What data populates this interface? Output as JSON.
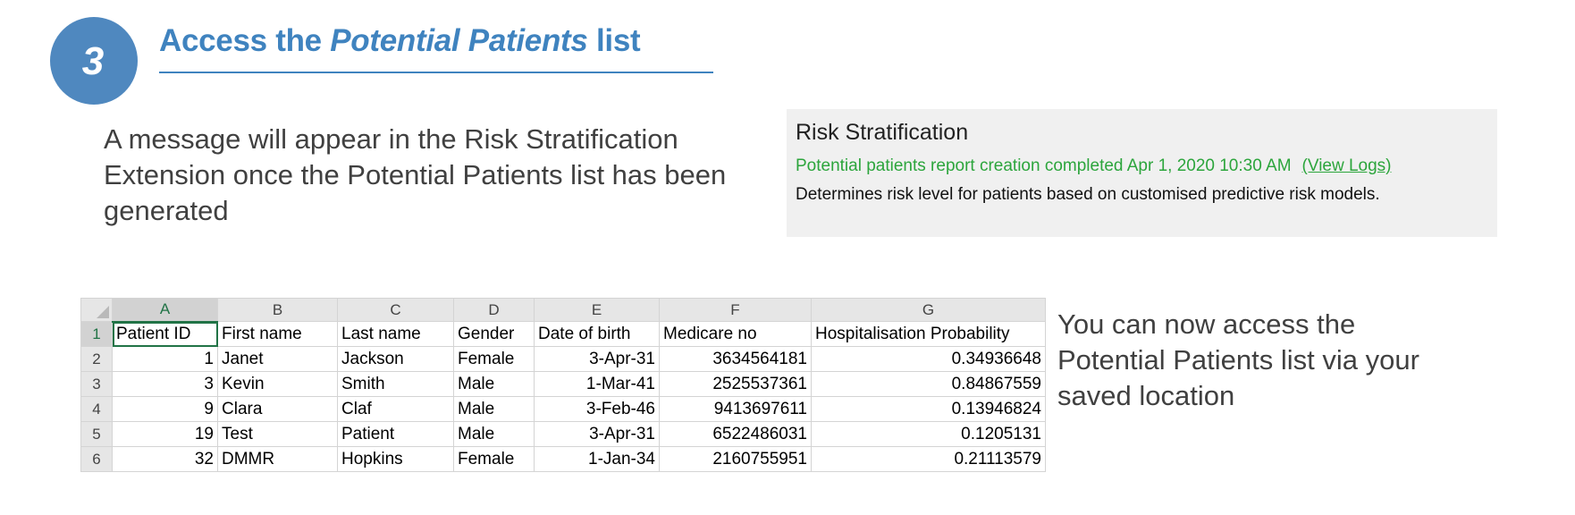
{
  "step": {
    "number": "3",
    "title_prefix": "Access the ",
    "title_emphasis": "Potential Patients",
    "title_suffix": " list"
  },
  "intro_text": "A message will appear in the Risk Stratification Extension once the Potential Patients list has been generated",
  "risk_panel": {
    "title": "Risk Stratification",
    "status": "Potential patients report creation completed Apr 1, 2020 10:30 AM",
    "link_label": "(View Logs)",
    "description": "Determines risk level for patients based on customised predictive risk models.",
    "status_color": "#2ca53c"
  },
  "spreadsheet": {
    "column_letters": [
      "A",
      "B",
      "C",
      "D",
      "E",
      "F",
      "G"
    ],
    "row_numbers": [
      "1",
      "2",
      "3",
      "4",
      "5",
      "6"
    ],
    "headers": [
      "Patient ID",
      "First name",
      "Last name",
      "Gender",
      "Date of birth",
      "Medicare no",
      "Hospitalisation Probability"
    ],
    "rows": [
      [
        "1",
        "Janet",
        "Jackson",
        "Female",
        "3-Apr-31",
        "3634564181",
        "0.34936648"
      ],
      [
        "3",
        "Kevin",
        "Smith",
        "Male",
        "1-Mar-41",
        "2525537361",
        "0.84867559"
      ],
      [
        "9",
        "Clara",
        "Claf",
        "Male",
        "3-Feb-46",
        "9413697611",
        "0.13946824"
      ],
      [
        "19",
        "Test",
        "Patient",
        "Male",
        "3-Apr-31",
        "6522486031",
        "0.1205131"
      ],
      [
        "32",
        "DMMR",
        "Hopkins",
        "Female",
        "1-Jan-34",
        "2160755951",
        "0.21113579"
      ]
    ],
    "accent_color": "#217346"
  },
  "side_text": "You can now access the Potential Patients list via your saved location"
}
